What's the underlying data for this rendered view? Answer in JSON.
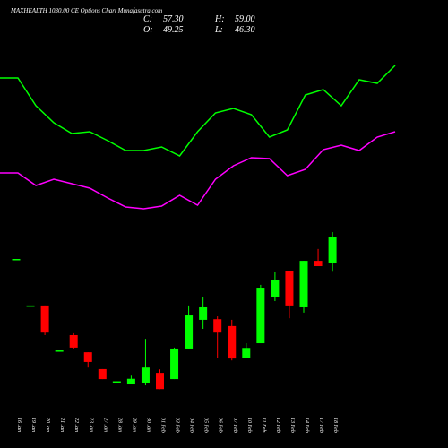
{
  "chart_data": {
    "type": "candlestick",
    "title": "MAXHEALTH 1030.00 CE Options Chart Munafasutra.com",
    "summary": [
      {
        "label": "C:",
        "value": "57.30"
      },
      {
        "label": "H:",
        "value": "59.00"
      },
      {
        "label": "O:",
        "value": "49.25"
      },
      {
        "label": "L:",
        "value": "46.30"
      }
    ],
    "categories": [
      "16 Jan",
      "19 Jan",
      "20 Jan",
      "21 Jan",
      "22 Jan",
      "23 Jan",
      "27 Jan",
      "28 Jan",
      "29 Jan",
      "30 Jan",
      "01 Feb",
      "03 Feb",
      "04 Feb",
      "05 Feb",
      "06 Feb",
      "07 Feb",
      "10 Feb",
      "11 Feb",
      "12 Feb",
      "13 Feb",
      "14 Feb",
      "17 Feb",
      "18 Feb"
    ],
    "open": [
      50.4,
      35.5,
      35.5,
      21.1,
      26.0,
      20.5,
      15.1,
      10.7,
      10.2,
      10.7,
      13.9,
      11.9,
      21.7,
      30.9,
      31.1,
      28.9,
      18.8,
      23.4,
      38.3,
      46.4,
      34.9,
      49.8,
      49.25
    ],
    "high": [
      50.4,
      35.5,
      35.5,
      21.1,
      26.6,
      20.5,
      15.1,
      11.2,
      13.0,
      24.8,
      15.0,
      22.0,
      35.5,
      38.3,
      32.0,
      30.9,
      23.4,
      42.1,
      46.1,
      46.4,
      49.8,
      53.6,
      59.0
    ],
    "low": [
      50.4,
      35.5,
      26.0,
      21.1,
      21.4,
      15.6,
      11.9,
      10.7,
      10.2,
      9.9,
      8.7,
      11.9,
      21.7,
      28.0,
      18.8,
      17.9,
      18.8,
      23.4,
      36.9,
      31.4,
      33.2,
      48.1,
      46.3
    ],
    "close": [
      50.4,
      35.5,
      26.8,
      21.1,
      22.0,
      17.4,
      11.9,
      11.2,
      12.0,
      15.6,
      8.7,
      21.7,
      32.3,
      34.9,
      26.8,
      18.5,
      21.9,
      41.2,
      43.8,
      35.5,
      49.8,
      48.1,
      57.3
    ],
    "up_color": "#00ff00",
    "down_color": "#ff0000",
    "ylim": [
      1.3,
      61.6
    ],
    "indicator": {
      "ylim": [
        0,
        100
      ],
      "series": [
        {
          "color": "#00ff00",
          "values": [
            81.5,
            81.5,
            66,
            56.5,
            50.5,
            51.5,
            46.5,
            41,
            41,
            43,
            38,
            51.5,
            62,
            64.5,
            61,
            48.5,
            52.5,
            72,
            75,
            66,
            80.5,
            78.5,
            88.5
          ]
        },
        {
          "color": "#ff00ff",
          "values": [
            28.5,
            28.5,
            21.5,
            25,
            22.5,
            20,
            14.5,
            9.5,
            8.5,
            10,
            16,
            10.5,
            25,
            32.5,
            37,
            36.5,
            27,
            30.5,
            41.5,
            44,
            41,
            48.5,
            51.5
          ]
        }
      ]
    }
  }
}
